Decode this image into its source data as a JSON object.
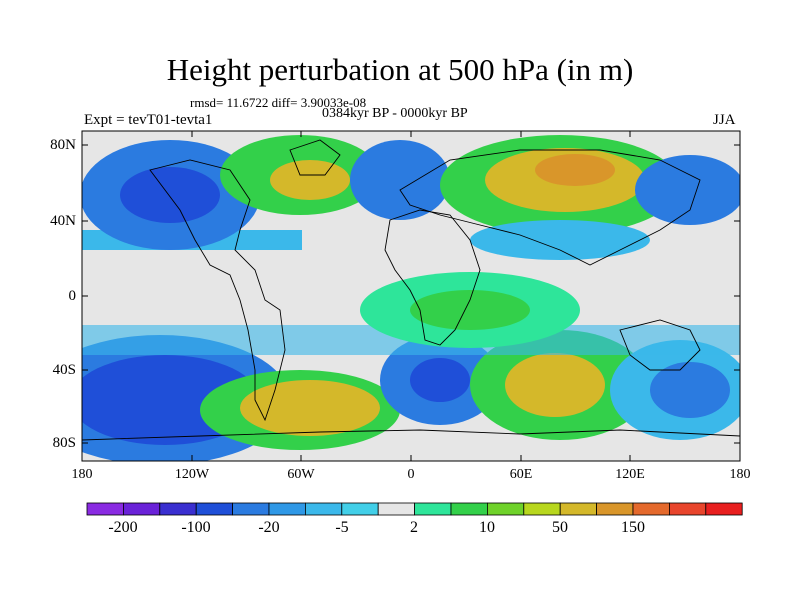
{
  "title": "Height perturbation at 500 hPa (in m)",
  "stats_line": "rmsd= 11.6722 diff= 3.90033e-08",
  "period": "0384kyr BP - 0000kyr BP",
  "experiment": "Expt = tevT01-tevta1",
  "season": "JJA",
  "map": {
    "lat_ticks": [
      "80N",
      "40N",
      "0",
      "40S",
      "80S"
    ],
    "lon_ticks": [
      "180",
      "120W",
      "60W",
      "0",
      "60E",
      "120E",
      "180"
    ]
  },
  "colorbar": {
    "colors": [
      "#8a2be2",
      "#6a22d8",
      "#3a2fd0",
      "#1f4fd8",
      "#2b7be0",
      "#2f98e6",
      "#3bb8ea",
      "#42cfe8",
      "#e6e6e6",
      "#2ee59a",
      "#33d04a",
      "#6fd22a",
      "#b8d71e",
      "#d4b82a",
      "#d9962a",
      "#e4692c",
      "#e8452c",
      "#e81f1f"
    ],
    "labels": [
      "-200",
      "-100",
      "-20",
      "-5",
      "2",
      "10",
      "50",
      "150"
    ]
  },
  "colors": {
    "ocean_neutral": "#e6e6e6",
    "blue_strong": "#1f4fd8",
    "blue_mid": "#2b7be0",
    "blue_light": "#3bb8ea",
    "cyan": "#42cfe8",
    "green_mint": "#2ee59a",
    "green": "#33d04a",
    "yellow_green": "#b8d71e",
    "gold": "#d4b82a",
    "orange": "#d9962a"
  }
}
